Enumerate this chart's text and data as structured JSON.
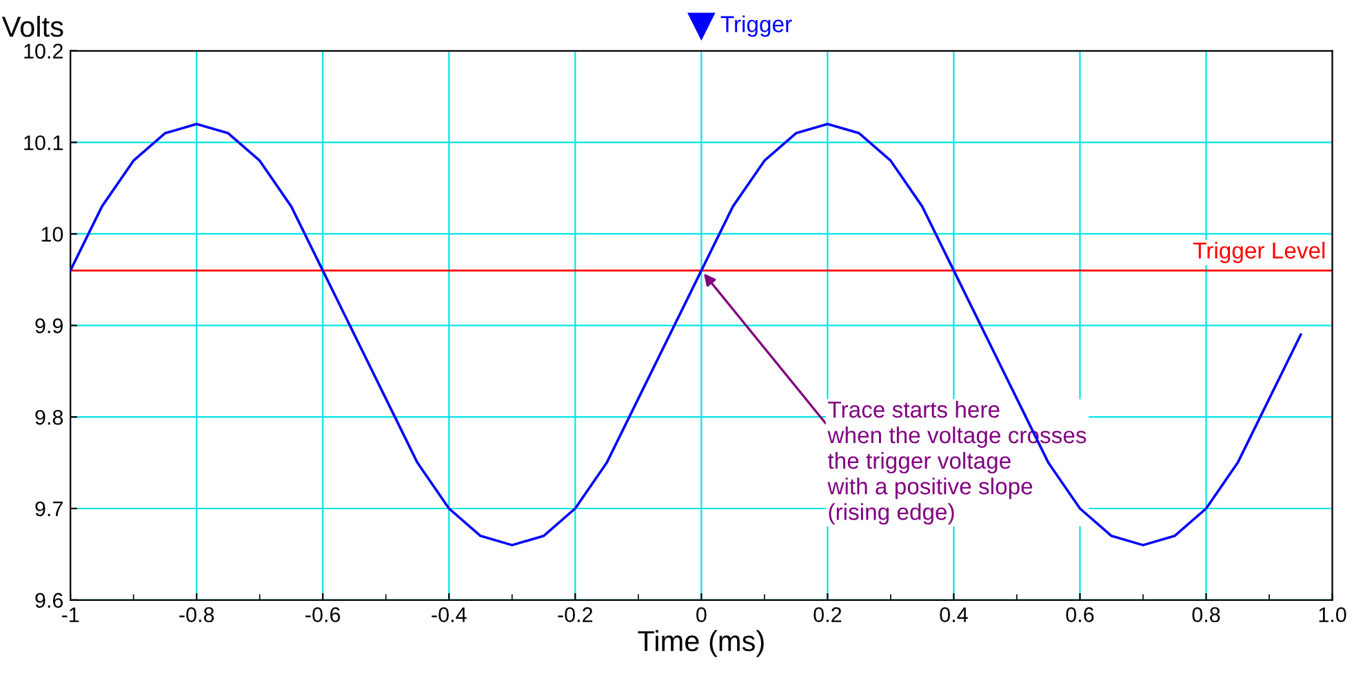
{
  "chart_data": {
    "type": "line",
    "xlabel": "Time (ms)",
    "ylabel": "Volts",
    "x": [
      -1,
      -0.95,
      -0.9,
      -0.85,
      -0.8,
      -0.75,
      -0.7,
      -0.65,
      -0.6,
      -0.55,
      -0.5,
      -0.45,
      -0.4,
      -0.35,
      -0.3,
      -0.25,
      -0.2,
      -0.15,
      -0.1,
      -0.05,
      0,
      0.05,
      0.1,
      0.15,
      0.2,
      0.25,
      0.3,
      0.35,
      0.4,
      0.45,
      0.5,
      0.55,
      0.6,
      0.65,
      0.7,
      0.75,
      0.8,
      0.85,
      0.9,
      0.95
    ],
    "series": [
      {
        "color": "#0000ff",
        "values": [
          9.96,
          10.03,
          10.08,
          10.11,
          10.12,
          10.11,
          10.08,
          10.03,
          9.96,
          9.89,
          9.82,
          9.75,
          9.7,
          9.67,
          9.66,
          9.67,
          9.7,
          9.75,
          9.82,
          9.89,
          9.96,
          10.03,
          10.08,
          10.11,
          10.12,
          10.11,
          10.08,
          10.03,
          9.96,
          9.89,
          9.82,
          9.75,
          9.7,
          9.67,
          9.66,
          9.67,
          9.7,
          9.75,
          9.82,
          9.89
        ]
      }
    ],
    "xlim": [
      -1,
      1
    ],
    "ylim": [
      9.6,
      10.2
    ],
    "xticks": [
      -1,
      {
        "value": -0.9,
        "label": null
      },
      -0.8,
      {
        "value": -0.7,
        "label": null
      },
      -0.6,
      {
        "value": -0.5,
        "label": null
      },
      -0.4,
      {
        "value": -0.3,
        "label": null
      },
      -0.2,
      {
        "value": -0.1,
        "label": null
      },
      0,
      {
        "value": 0.1,
        "label": null
      },
      0.2,
      {
        "value": 0.3,
        "label": null
      },
      0.4,
      {
        "value": 0.5,
        "label": null
      },
      0.6,
      {
        "value": 0.7,
        "label": null
      },
      0.8,
      {
        "value": 0.9,
        "label": null
      },
      {
        "value": 1,
        "label": "1.0"
      }
    ],
    "yticks": [
      9.6,
      9.7,
      9.8,
      9.9,
      10,
      10.1,
      10.2
    ],
    "grid": true,
    "marker": "none",
    "line_style": "solid",
    "legend": false,
    "ref_lines": [
      {
        "axis": "y",
        "value": 9.96,
        "label": "Trigger Level",
        "color": "#ff0000"
      }
    ],
    "annotations": [
      "Trigger",
      {
        "text": "Trace starts here\nwhen the voltage crosses\nthe trigger voltage\nwith a positive slope\n(rising edge)",
        "x": 0,
        "y": 9.96
      }
    ]
  }
}
